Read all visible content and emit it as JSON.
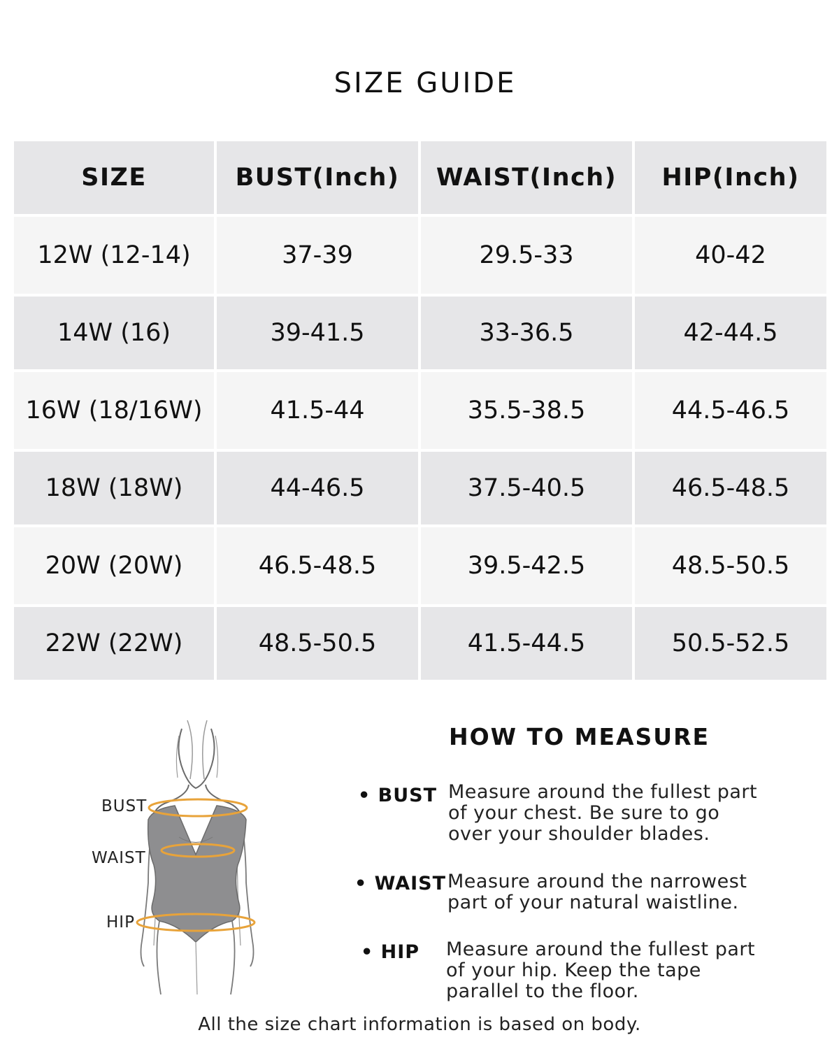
{
  "title": "SIZE GUIDE",
  "table": {
    "headers": [
      "SIZE",
      "BUST(Inch)",
      "WAIST(Inch)",
      "HIP(Inch)"
    ],
    "rows": [
      [
        "12W (12-14)",
        "37-39",
        "29.5-33",
        "40-42"
      ],
      [
        "14W (16)",
        "39-41.5",
        "33-36.5",
        "42-44.5"
      ],
      [
        "16W (18/16W)",
        "41.5-44",
        "35.5-38.5",
        "44.5-46.5"
      ],
      [
        "18W (18W)",
        "44-46.5",
        "37.5-40.5",
        "46.5-48.5"
      ],
      [
        "20W (20W)",
        "46.5-48.5",
        "39.5-42.5",
        "48.5-50.5"
      ],
      [
        "22W (22W)",
        "48.5-50.5",
        "41.5-44.5",
        "50.5-52.5"
      ]
    ]
  },
  "figure": {
    "labels": {
      "bust": "BUST",
      "waist": "WAIST",
      "hip": "HIP"
    },
    "tape_color": "#e8a33a",
    "body_color": "#8e8e90"
  },
  "how_to_measure": {
    "title": "HOW TO MEASURE",
    "items": [
      {
        "label": "• BUST",
        "lines": [
          "Measure around the fullest part",
          "of your chest. Be sure to go",
          "over your shoulder blades."
        ]
      },
      {
        "label": "• WAIST",
        "lines": [
          "Measure around the narrowest",
          "part of your natural waistline."
        ]
      },
      {
        "label": "• HIP",
        "lines": [
          "Measure around the fullest part",
          "of your hip. Keep the tape",
          "parallel to the floor."
        ]
      }
    ]
  },
  "note": "All the size chart information is based on body."
}
